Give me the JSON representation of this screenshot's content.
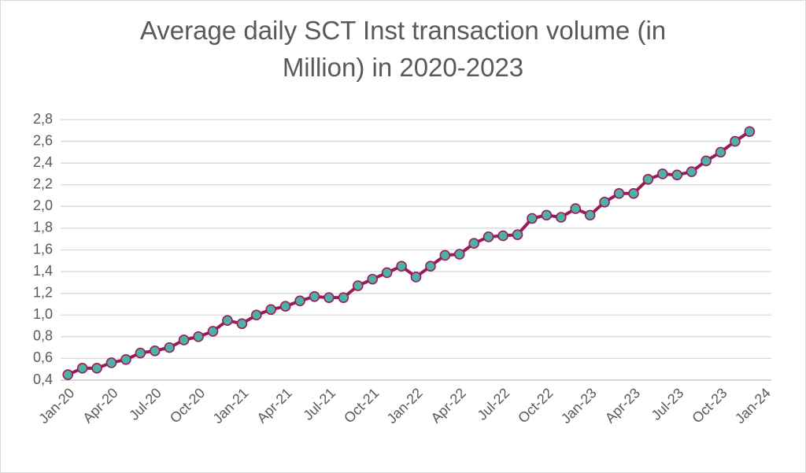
{
  "chart_data": {
    "type": "line",
    "title": [
      "Average daily SCT Inst transaction volume (in",
      "Million) in 2020-2023"
    ],
    "categories": [
      "Jan-20",
      null,
      null,
      "Apr-20",
      null,
      null,
      "Jul-20",
      null,
      null,
      "Oct-20",
      null,
      null,
      "Jan-21",
      null,
      null,
      "Apr-21",
      null,
      null,
      "Jul-21",
      null,
      null,
      "Oct-21",
      null,
      null,
      "Jan-22",
      null,
      null,
      "Apr-22",
      null,
      null,
      "Jul-22",
      null,
      null,
      "Oct-22",
      null,
      null,
      "Jan-23",
      null,
      null,
      "Apr-23",
      null,
      null,
      "Jul-23",
      null,
      null,
      "Oct-23",
      null,
      null,
      "Jan-24"
    ],
    "series": [
      {
        "color": "#9b1b5a",
        "marker_color": "#4fb0a5",
        "values": [
          0.45,
          0.51,
          0.51,
          0.56,
          0.59,
          0.65,
          0.67,
          0.7,
          0.77,
          0.8,
          0.85,
          0.95,
          0.92,
          1.0,
          1.05,
          1.08,
          1.13,
          1.17,
          1.16,
          1.16,
          1.27,
          1.33,
          1.39,
          1.45,
          1.35,
          1.45,
          1.55,
          1.56,
          1.66,
          1.72,
          1.73,
          1.74,
          1.89,
          1.92,
          1.9,
          1.98,
          1.92,
          2.04,
          2.12,
          2.12,
          2.25,
          2.3,
          2.29,
          2.32,
          2.42,
          2.5,
          2.6,
          2.69,
          null
        ]
      }
    ],
    "ylim": [
      0.4,
      2.8
    ],
    "yticks": [
      {
        "value": 0.4,
        "label": "0,4"
      },
      {
        "value": 0.6,
        "label": "0,6"
      },
      {
        "value": 0.8,
        "label": "0,8"
      },
      {
        "value": 1.0,
        "label": "1,0"
      },
      {
        "value": 1.2,
        "label": "1,2"
      },
      {
        "value": 1.4,
        "label": "1,4"
      },
      {
        "value": 1.6,
        "label": "1,6"
      },
      {
        "value": 1.8,
        "label": "1,8"
      },
      {
        "value": 2.0,
        "label": "2,0"
      },
      {
        "value": 2.2,
        "label": "2,2"
      },
      {
        "value": 2.4,
        "label": "2,4"
      },
      {
        "value": 2.6,
        "label": "2,6"
      },
      {
        "value": 2.8,
        "label": "2,8"
      }
    ],
    "grid": true
  }
}
